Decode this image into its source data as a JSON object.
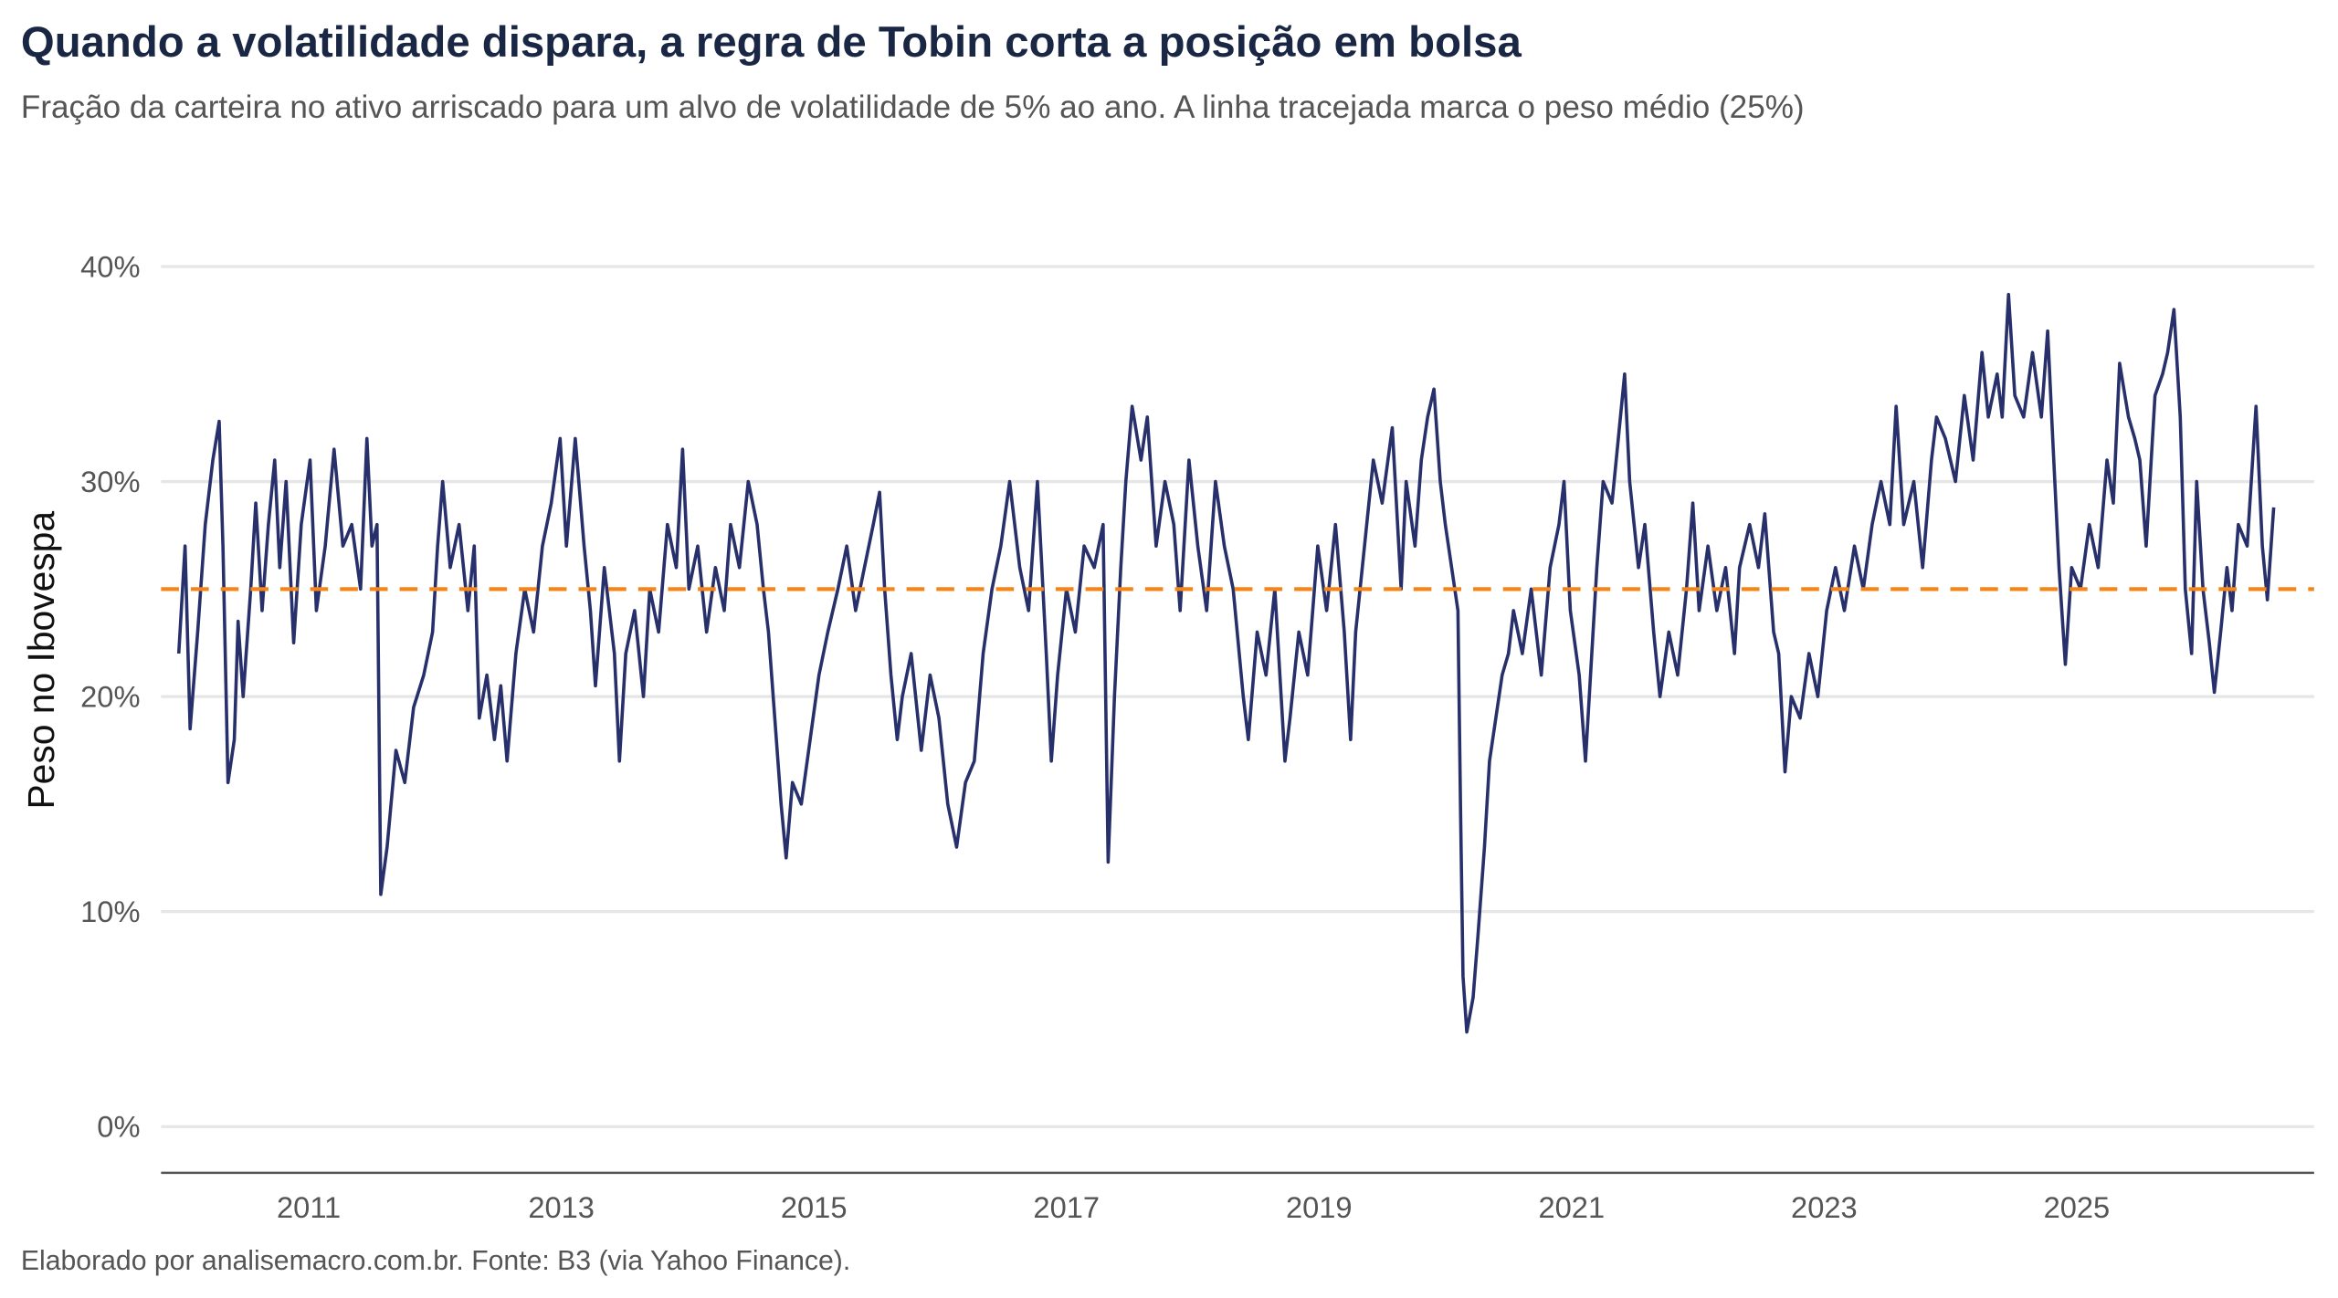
{
  "chart_data": {
    "type": "line",
    "title": "Quando a volatilidade dispara, a regra de Tobin corta a posição em bolsa",
    "subtitle": "Fração da carteira no ativo arriscado para um alvo de volatilidade de 5% ao ano. A linha tracejada marca o peso médio (25%)",
    "y_label": "Peso no Ibovespa",
    "caption": "Elaborado por analisemacro.com.br. Fonte: B3 (via Yahoo Finance).",
    "grid": true,
    "xlim": [
      2009.83,
      2026.88
    ],
    "ylim": [
      -2.15,
      42
    ],
    "xticks": [
      2011,
      2013,
      2015,
      2017,
      2019,
      2021,
      2023,
      2025
    ],
    "yticks": [
      {
        "value": 0,
        "label": "0%"
      },
      {
        "value": 10,
        "label": "10%"
      },
      {
        "value": 20,
        "label": "20%"
      },
      {
        "value": 30,
        "label": "30%"
      },
      {
        "value": 40,
        "label": "40%"
      }
    ],
    "reference_line": {
      "value": 25,
      "color": "#f58518"
    },
    "x": [
      2009.97,
      2010.02,
      2010.06,
      2010.12,
      2010.18,
      2010.24,
      2010.29,
      2010.32,
      2010.36,
      2010.41,
      2010.44,
      2010.48,
      2010.54,
      2010.58,
      2010.63,
      2010.68,
      2010.73,
      2010.77,
      2010.82,
      2010.88,
      2010.94,
      2011.01,
      2011.06,
      2011.13,
      2011.2,
      2011.27,
      2011.34,
      2011.41,
      2011.46,
      2011.5,
      2011.54,
      2011.57,
      2011.62,
      2011.69,
      2011.76,
      2011.83,
      2011.91,
      2011.98,
      2012.02,
      2012.06,
      2012.12,
      2012.19,
      2012.26,
      2012.31,
      2012.35,
      2012.41,
      2012.47,
      2012.52,
      2012.57,
      2012.64,
      2012.71,
      2012.78,
      2012.85,
      2012.92,
      2012.99,
      2013.04,
      2013.11,
      2013.18,
      2013.23,
      2013.27,
      2013.34,
      2013.42,
      2013.46,
      2013.51,
      2013.58,
      2013.65,
      2013.7,
      2013.77,
      2013.84,
      2013.91,
      2013.96,
      2014.01,
      2014.08,
      2014.15,
      2014.22,
      2014.29,
      2014.34,
      2014.41,
      2014.48,
      2014.55,
      2014.6,
      2014.64,
      2014.69,
      2014.74,
      2014.78,
      2014.83,
      2014.9,
      2014.97,
      2015.04,
      2015.11,
      2015.19,
      2015.26,
      2015.33,
      2015.4,
      2015.47,
      2015.52,
      2015.56,
      2015.61,
      2015.66,
      2015.7,
      2015.77,
      2015.85,
      2015.92,
      2015.99,
      2016.06,
      2016.13,
      2016.2,
      2016.27,
      2016.34,
      2016.41,
      2016.48,
      2016.55,
      2016.63,
      2016.7,
      2016.77,
      2016.84,
      2016.88,
      2016.93,
      2017.0,
      2017.07,
      2017.14,
      2017.22,
      2017.29,
      2017.33,
      2017.38,
      2017.43,
      2017.47,
      2017.52,
      2017.59,
      2017.64,
      2017.71,
      2017.78,
      2017.85,
      2017.9,
      2017.97,
      2018.04,
      2018.11,
      2018.18,
      2018.25,
      2018.32,
      2018.4,
      2018.44,
      2018.51,
      2018.58,
      2018.65,
      2018.73,
      2018.77,
      2018.84,
      2018.91,
      2018.99,
      2019.06,
      2019.13,
      2019.2,
      2019.25,
      2019.29,
      2019.36,
      2019.43,
      2019.5,
      2019.58,
      2019.65,
      2019.69,
      2019.76,
      2019.81,
      2019.86,
      2019.91,
      2019.96,
      2020.0,
      2020.05,
      2020.1,
      2020.12,
      2020.14,
      2020.17,
      2020.22,
      2020.26,
      2020.31,
      2020.35,
      2020.4,
      2020.45,
      2020.5,
      2020.54,
      2020.61,
      2020.68,
      2020.76,
      2020.83,
      2020.9,
      2020.94,
      2020.99,
      2021.06,
      2021.11,
      2021.16,
      2021.2,
      2021.25,
      2021.32,
      2021.37,
      2021.42,
      2021.46,
      2021.53,
      2021.58,
      2021.65,
      2021.7,
      2021.77,
      2021.84,
      2021.91,
      2021.96,
      2022.01,
      2022.08,
      2022.15,
      2022.22,
      2022.29,
      2022.33,
      2022.41,
      2022.48,
      2022.53,
      2022.6,
      2022.64,
      2022.69,
      2022.74,
      2022.81,
      2022.88,
      2022.95,
      2023.02,
      2023.09,
      2023.16,
      2023.24,
      2023.31,
      2023.38,
      2023.45,
      2023.52,
      2023.57,
      2023.63,
      2023.71,
      2023.78,
      2023.85,
      2023.89,
      2023.96,
      2024.04,
      2024.11,
      2024.18,
      2024.25,
      2024.3,
      2024.37,
      2024.41,
      2024.46,
      2024.51,
      2024.58,
      2024.65,
      2024.72,
      2024.77,
      2024.81,
      2024.86,
      2024.91,
      2024.96,
      2025.03,
      2025.1,
      2025.17,
      2025.24,
      2025.29,
      2025.34,
      2025.41,
      2025.46,
      2025.5,
      2025.55,
      2025.62,
      2025.68,
      2025.72,
      2025.77,
      2025.82,
      2025.86,
      2025.91,
      2025.95,
      2026.0,
      2026.05,
      2026.09,
      2026.14,
      2026.19,
      2026.23,
      2026.28,
      2026.35,
      2026.42,
      2026.47,
      2026.51,
      2026.56
    ],
    "series": [
      {
        "name": "Peso no Ibovespa",
        "color": "#27306b",
        "values": [
          22,
          27,
          18.5,
          23,
          28,
          31,
          32.8,
          27,
          16,
          18,
          23.5,
          20,
          25,
          29,
          24,
          28,
          31,
          26,
          30,
          22.5,
          28,
          31,
          24,
          27,
          31.5,
          27,
          28,
          25,
          32,
          27,
          28,
          10.8,
          13,
          17.5,
          16,
          19.5,
          21,
          23,
          27,
          30,
          26,
          28,
          24,
          27,
          19,
          21,
          18,
          20.5,
          17,
          22,
          25,
          23,
          27,
          29,
          32,
          27,
          32,
          27,
          24,
          20.5,
          26,
          22,
          17,
          22,
          24,
          20,
          25,
          23,
          28,
          26,
          31.5,
          25,
          27,
          23,
          26,
          24,
          28,
          26,
          30,
          28,
          25,
          23,
          19,
          15,
          12.5,
          16,
          15,
          18,
          21,
          23,
          25,
          27,
          24,
          26,
          28,
          29.5,
          25,
          21,
          18,
          20,
          22,
          17.5,
          21,
          19,
          15,
          13,
          16,
          17,
          22,
          25,
          27,
          30,
          26,
          24,
          30,
          22,
          17,
          21,
          25,
          23,
          27,
          26,
          28,
          12.3,
          20,
          26,
          30,
          33.5,
          31,
          33,
          27,
          30,
          28,
          24,
          31,
          27,
          24,
          30,
          27,
          25,
          20,
          18,
          23,
          21,
          25,
          17,
          19,
          23,
          21,
          27,
          24,
          28,
          23,
          18,
          23,
          27,
          31,
          29,
          32.5,
          25,
          30,
          27,
          31,
          33,
          34.3,
          30,
          28,
          26,
          24,
          15,
          7,
          4.4,
          6,
          9,
          13,
          17,
          19,
          21,
          22,
          24,
          22,
          25,
          21,
          26,
          28,
          30,
          24,
          21,
          17,
          22,
          26,
          30,
          29,
          32,
          35,
          30,
          26,
          28,
          23,
          20,
          23,
          21,
          25,
          29,
          24,
          27,
          24,
          26,
          22,
          26,
          28,
          26,
          28.5,
          23,
          22,
          16.5,
          20,
          19,
          22,
          20,
          24,
          26,
          24,
          27,
          25,
          28,
          30,
          28,
          33.5,
          28,
          30,
          26,
          31,
          33,
          32,
          30,
          34,
          31,
          36,
          33,
          35,
          33,
          38.7,
          34,
          33,
          36,
          33,
          37,
          32,
          26,
          21.5,
          26,
          25,
          28,
          26,
          31,
          29,
          35.5,
          33,
          32,
          31,
          27,
          34,
          35,
          36,
          38,
          33,
          25,
          22,
          30,
          25,
          22.5,
          20.2,
          23,
          26,
          24,
          28,
          27,
          33.5,
          27,
          24.5,
          28.8
        ]
      }
    ]
  }
}
